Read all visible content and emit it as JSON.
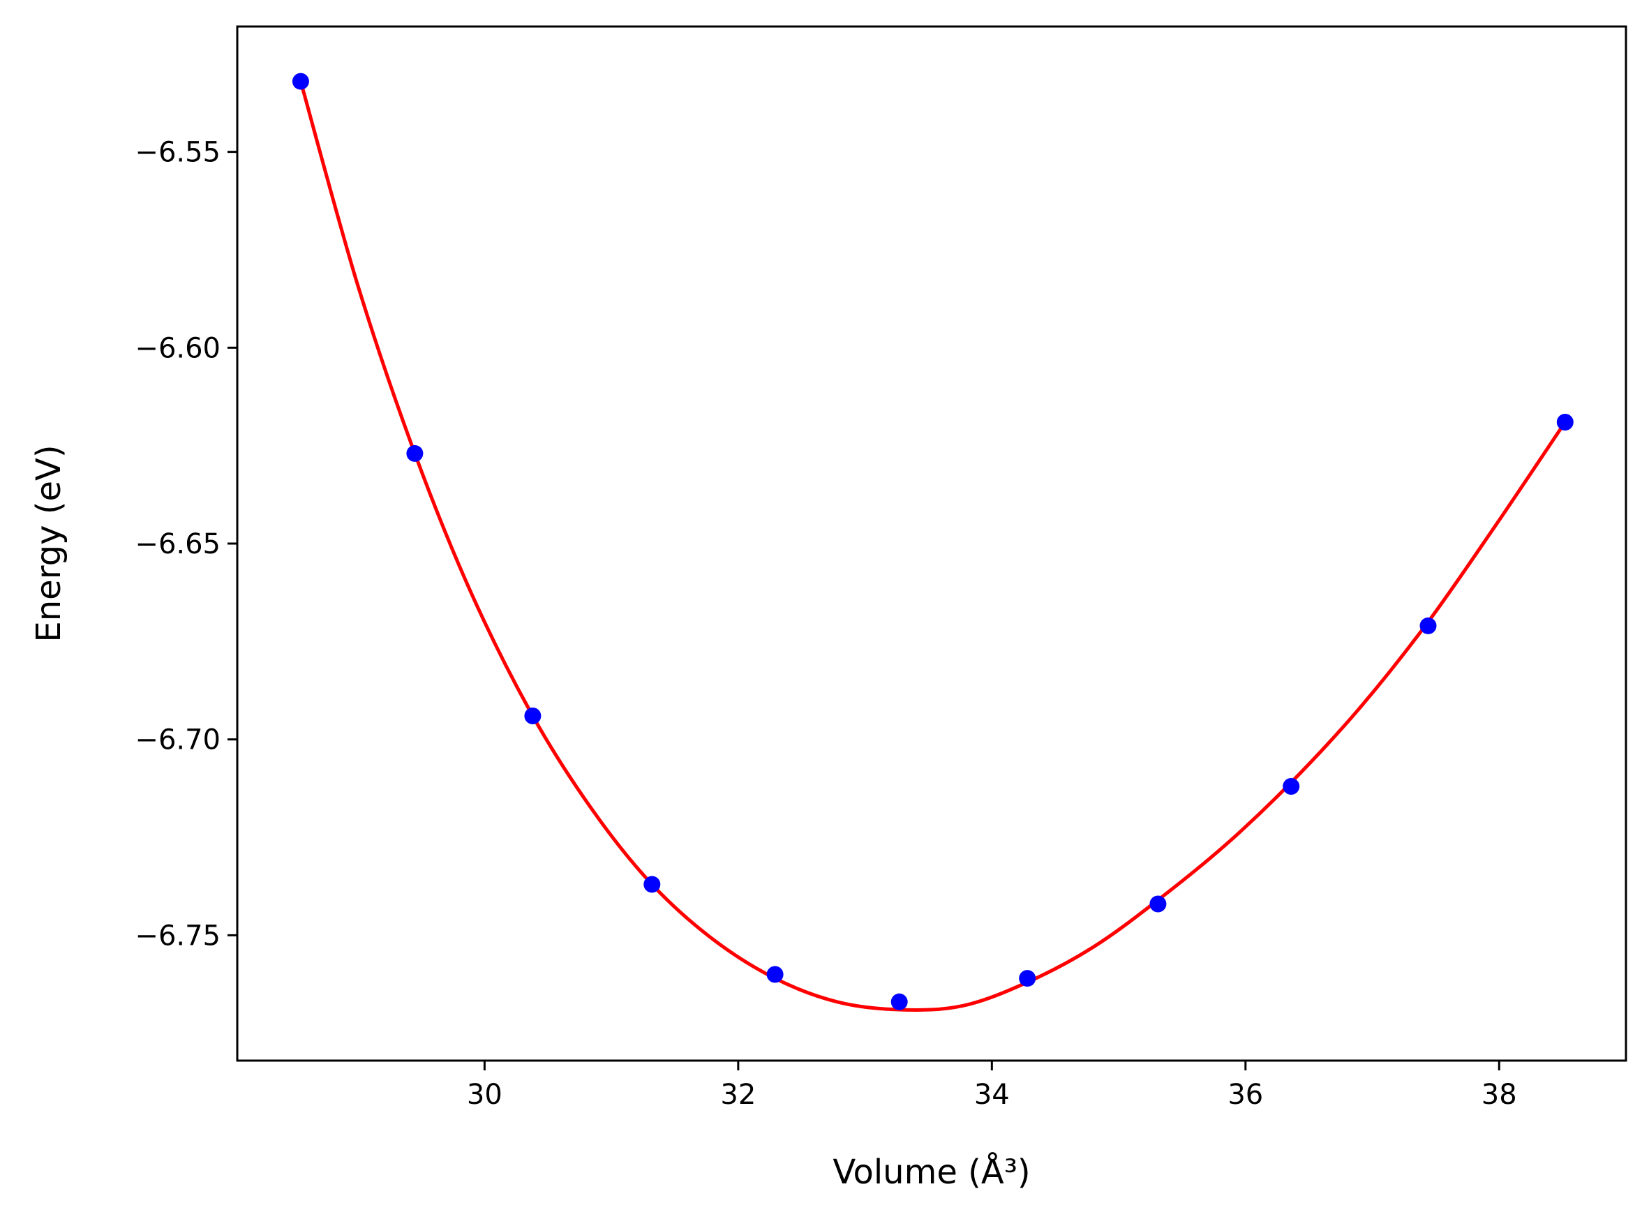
{
  "chart_data": {
    "type": "scatter",
    "xlabel": "Volume (Å³)",
    "ylabel": "Energy (eV)",
    "xlim": [
      28.05,
      39.0
    ],
    "ylim": [
      -6.782,
      -6.518
    ],
    "x_ticks": [
      30,
      32,
      34,
      36,
      38
    ],
    "x_tick_labels": [
      "30",
      "32",
      "34",
      "36",
      "38"
    ],
    "y_ticks": [
      -6.55,
      -6.6,
      -6.65,
      -6.7,
      -6.75
    ],
    "y_tick_labels": [
      "−6.55",
      "−6.60",
      "−6.65",
      "−6.70",
      "−6.75"
    ],
    "grid": false,
    "series": [
      {
        "kind": "points",
        "color": "#0000ff",
        "x": [
          28.55,
          29.45,
          30.38,
          31.32,
          32.29,
          33.27,
          34.28,
          35.31,
          36.36,
          37.44,
          38.52
        ],
        "y": [
          -6.532,
          -6.627,
          -6.694,
          -6.737,
          -6.76,
          -6.767,
          -6.761,
          -6.742,
          -6.712,
          -6.671,
          -6.619
        ]
      },
      {
        "kind": "fit-line",
        "color": "#ff0000",
        "x": [
          28.55,
          29.0,
          29.45,
          29.9,
          30.38,
          30.85,
          31.32,
          31.8,
          32.29,
          32.78,
          33.27,
          33.77,
          34.28,
          34.8,
          35.31,
          35.84,
          36.36,
          36.9,
          37.44,
          37.98,
          38.52
        ],
        "y": [
          -6.532,
          -6.584,
          -6.627,
          -6.663,
          -6.694,
          -6.718,
          -6.737,
          -6.751,
          -6.761,
          -6.767,
          -6.769,
          -6.768,
          -6.762,
          -6.753,
          -6.741,
          -6.727,
          -6.711,
          -6.692,
          -6.67,
          -6.645,
          -6.619
        ]
      }
    ]
  }
}
